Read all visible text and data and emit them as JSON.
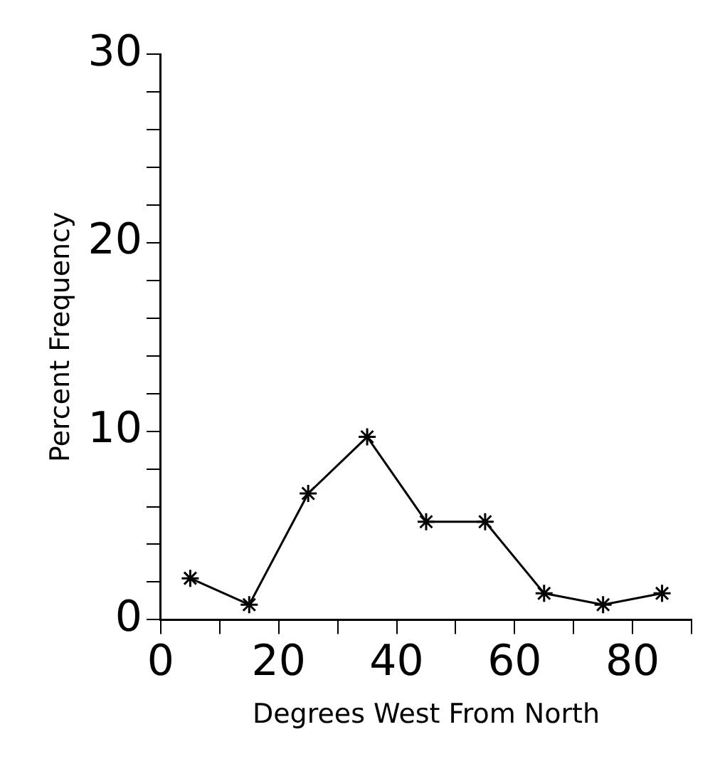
{
  "chart_data": {
    "type": "line",
    "xlabel": "Degrees West From North",
    "ylabel": "Percent Frequency",
    "x": [
      5,
      15,
      25,
      35,
      45,
      55,
      65,
      75,
      85
    ],
    "series": [
      {
        "color": "#000000",
        "values": [
          2.2,
          0.8,
          6.7,
          9.7,
          5.2,
          5.2,
          1.4,
          0.8,
          1.4
        ]
      }
    ],
    "xlim": [
      0,
      90
    ],
    "xticks": [
      0,
      {
        "value": 10,
        "label": null
      },
      20,
      {
        "value": 30,
        "label": null
      },
      40,
      {
        "value": 50,
        "label": null
      },
      60,
      {
        "value": 70,
        "label": null
      },
      80,
      {
        "value": 90,
        "label": null
      }
    ],
    "ylim": [
      0,
      30
    ],
    "yticks": [
      0,
      {
        "value": 2,
        "label": null
      },
      {
        "value": 4,
        "label": null
      },
      {
        "value": 6,
        "label": null
      },
      {
        "value": 8,
        "label": null
      },
      10,
      {
        "value": 12,
        "label": null
      },
      {
        "value": 14,
        "label": null
      },
      {
        "value": 16,
        "label": null
      },
      {
        "value": 18,
        "label": null
      },
      20,
      {
        "value": 22,
        "label": null
      },
      {
        "value": 24,
        "label": null
      },
      {
        "value": 26,
        "label": null
      },
      {
        "value": 28,
        "label": null
      },
      30
    ],
    "marker": "cross",
    "line_style": "solid",
    "grid": false,
    "legend": false
  }
}
